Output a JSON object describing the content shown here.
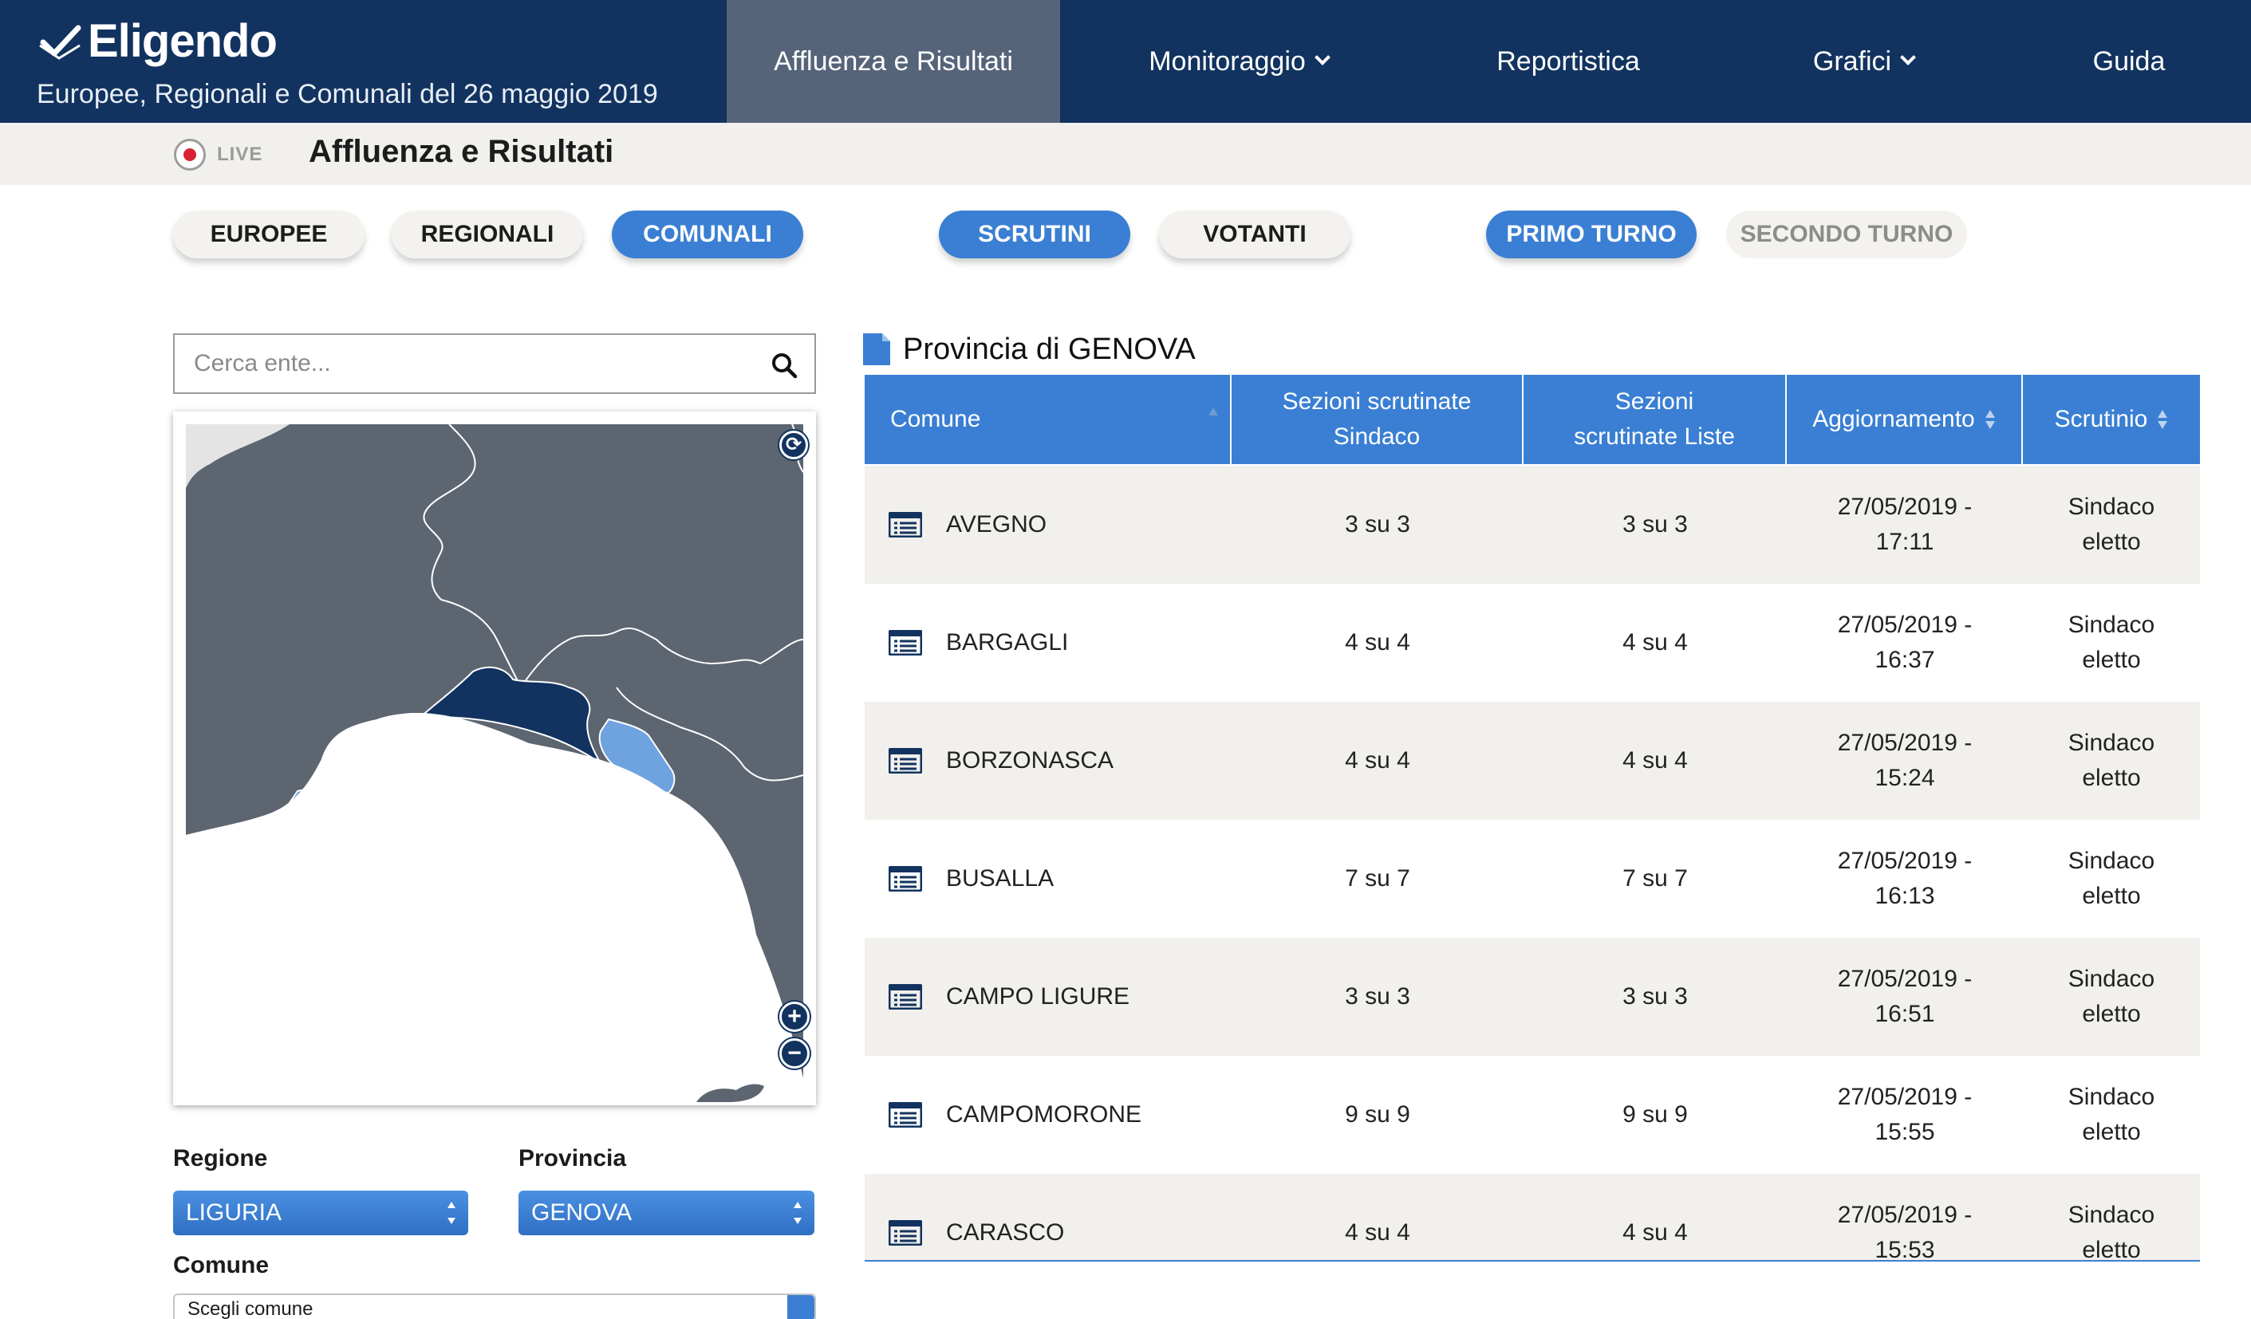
{
  "header": {
    "brand": "Eligendo",
    "subtitle": "Europee, Regionali e Comunali del 26 maggio 2019",
    "nav": [
      {
        "label": "Affluenza e Risultati",
        "active": true
      },
      {
        "label": "Monitoraggio",
        "dropdown": true
      },
      {
        "label": "Reportistica"
      },
      {
        "label": "Grafici",
        "dropdown": true
      },
      {
        "label": "Guida"
      }
    ]
  },
  "subheader": {
    "live_label": "LIVE",
    "title": "Affluenza e Risultati"
  },
  "election_tabs": [
    {
      "label": "EUROPEE",
      "active": false
    },
    {
      "label": "REGIONALI",
      "active": false
    },
    {
      "label": "COMUNALI",
      "active": true
    }
  ],
  "view_tabs": [
    {
      "label": "SCRUTINI",
      "active": true
    },
    {
      "label": "VOTANTI",
      "active": false
    }
  ],
  "round_tabs": [
    {
      "label": "PRIMO TURNO",
      "active": true
    },
    {
      "label": "SECONDO TURNO",
      "active": false
    }
  ],
  "search": {
    "placeholder": "Cerca ente..."
  },
  "filters": {
    "regione_label": "Regione",
    "regione_value": "LIGURIA",
    "provincia_label": "Provincia",
    "provincia_value": "GENOVA",
    "comune_label": "Comune",
    "comune_value": "Scegli comune"
  },
  "map": {
    "colors": {
      "land": "#5d6571",
      "selected": "#12335f",
      "highlight": "#6fa3e0",
      "border": "#ffffff"
    }
  },
  "province_title": "Provincia di GENOVA",
  "table": {
    "columns": [
      "Comune",
      "Sezioni scrutinate Sindaco",
      "Sezioni scrutinate Liste",
      "Aggiornamento",
      "Scrutinio"
    ],
    "rows": [
      {
        "comune": "AVEGNO",
        "sindaco": "3 su 3",
        "liste": "3 su 3",
        "aggiornamento": "27/05/2019 - 17:11",
        "scrutinio": "Sindaco eletto"
      },
      {
        "comune": "BARGAGLI",
        "sindaco": "4 su 4",
        "liste": "4 su 4",
        "aggiornamento": "27/05/2019 - 16:37",
        "scrutinio": "Sindaco eletto"
      },
      {
        "comune": "BORZONASCA",
        "sindaco": "4 su 4",
        "liste": "4 su 4",
        "aggiornamento": "27/05/2019 - 15:24",
        "scrutinio": "Sindaco eletto"
      },
      {
        "comune": "BUSALLA",
        "sindaco": "7 su 7",
        "liste": "7 su 7",
        "aggiornamento": "27/05/2019 - 16:13",
        "scrutinio": "Sindaco eletto"
      },
      {
        "comune": "CAMPO LIGURE",
        "sindaco": "3 su 3",
        "liste": "3 su 3",
        "aggiornamento": "27/05/2019 - 16:51",
        "scrutinio": "Sindaco eletto"
      },
      {
        "comune": "CAMPOMORONE",
        "sindaco": "9 su 9",
        "liste": "9 su 9",
        "aggiornamento": "27/05/2019 - 15:55",
        "scrutinio": "Sindaco eletto"
      },
      {
        "comune": "CARASCO",
        "sindaco": "4 su 4",
        "liste": "4 su 4",
        "aggiornamento": "27/05/2019 - 15:53",
        "scrutinio": "Sindaco eletto"
      }
    ]
  }
}
